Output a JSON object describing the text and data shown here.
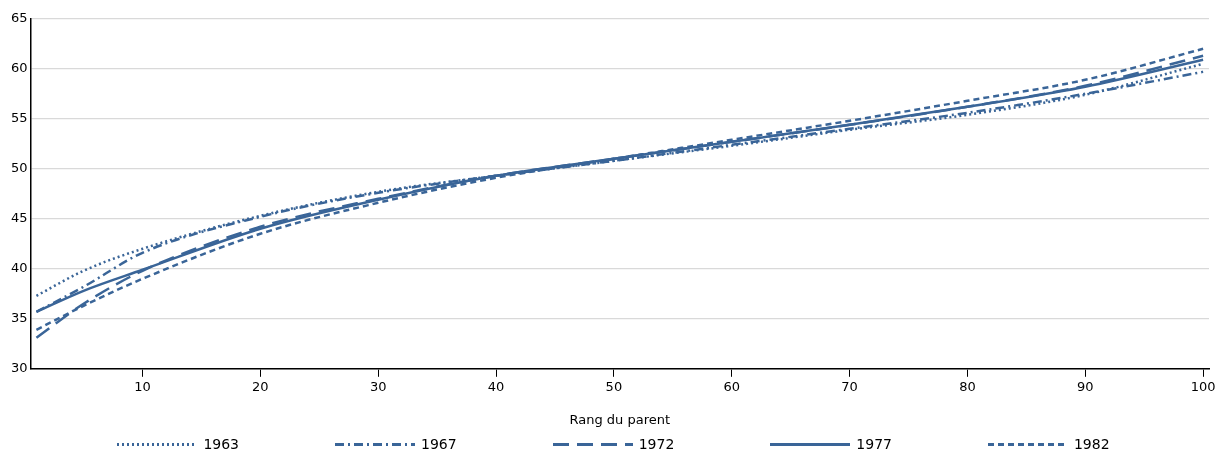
{
  "chart_data": {
    "type": "line",
    "xlabel": "Rang du parent",
    "x": [
      1,
      5,
      10,
      20,
      30,
      40,
      50,
      60,
      70,
      80,
      90,
      100
    ],
    "xlim": [
      0.5,
      100.5
    ],
    "xticks": [
      10,
      20,
      30,
      40,
      50,
      60,
      70,
      80,
      90,
      100
    ],
    "ylim": [
      30,
      65
    ],
    "yticks": [
      30,
      35,
      40,
      45,
      50,
      55,
      60,
      65
    ],
    "grid": "y",
    "legend": "bottom",
    "marker": "none",
    "series": [
      {
        "name": "1963",
        "color": "#3a6598",
        "line_style": "dotted",
        "values": [
          37.3,
          39.8,
          42.0,
          45.3,
          47.7,
          49.3,
          50.8,
          52.3,
          53.9,
          55.4,
          57.4,
          60.5
        ]
      },
      {
        "name": "1967",
        "color": "#3a6598",
        "line_style": "dashdot",
        "values": [
          35.7,
          38.2,
          41.6,
          45.2,
          47.6,
          49.3,
          50.8,
          52.4,
          54.0,
          55.6,
          57.5,
          59.7
        ]
      },
      {
        "name": "1972",
        "color": "#3a6598",
        "line_style": "longdash",
        "values": [
          33.1,
          36.5,
          39.8,
          44.2,
          47.0,
          49.3,
          51.0,
          52.7,
          54.4,
          56.2,
          58.3,
          61.3
        ]
      },
      {
        "name": "1977",
        "color": "#3a6598",
        "line_style": "solid",
        "values": [
          35.7,
          37.8,
          39.9,
          44.0,
          46.9,
          49.3,
          51.0,
          52.7,
          54.4,
          56.2,
          58.2,
          60.9
        ]
      },
      {
        "name": "1982",
        "color": "#3a6598",
        "line_style": "dashed",
        "values": [
          33.9,
          36.3,
          39.0,
          43.5,
          46.6,
          49.1,
          51.0,
          52.9,
          54.8,
          56.8,
          58.9,
          62.0
        ]
      }
    ]
  }
}
